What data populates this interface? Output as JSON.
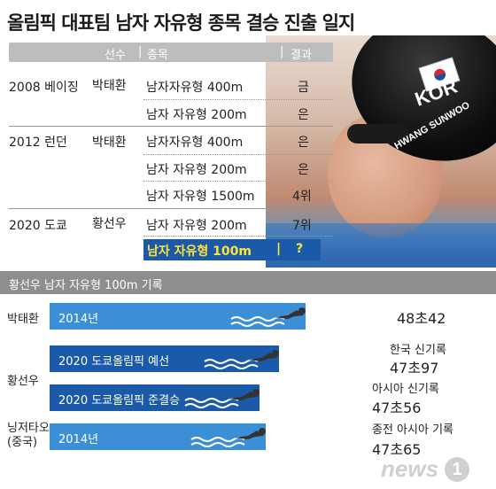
{
  "title": "올림픽 대표팀 남자 자유형 종목 결승 진출 일지",
  "photo": {
    "cap_country": "KOR",
    "cap_name": "HWANG SUNWOO"
  },
  "table": {
    "headers": {
      "athlete": "선수",
      "event": "종목",
      "result": "결과"
    },
    "rows": [
      {
        "games": "2008 베이징",
        "athlete": "박태환",
        "event": "남자자유형 400m",
        "result": "금"
      },
      {
        "games": "",
        "athlete": "",
        "event": "남자 자유형 200m",
        "result": "은"
      },
      {
        "games": "2012 런던",
        "athlete": "박태환",
        "event": "남자자유형 400m",
        "result": "은"
      },
      {
        "games": "",
        "athlete": "",
        "event": "남자 자유형 200m",
        "result": "은"
      },
      {
        "games": "",
        "athlete": "",
        "event": "남자 자유형 1500m",
        "result": "4위"
      },
      {
        "games": "2020 도쿄",
        "athlete": "황선우",
        "event": "남자 자유형 200m",
        "result": "7위"
      }
    ],
    "highlight": {
      "event": "남자 자유형 100m",
      "divider": "|",
      "result": "?"
    }
  },
  "records": {
    "header": "황선우 남자 자유형 100m 기록",
    "entries": [
      {
        "person": "박태환",
        "label": "2014년",
        "note": "",
        "time": "48초42",
        "bar_color": "#3a8fd6",
        "fill": 0.78
      },
      {
        "person": "황선우",
        "label": "2020 도쿄올림픽 예선",
        "note": "한국 신기록",
        "time": "47초97",
        "bar_color": "#1a5aa8",
        "fill": 0.7
      },
      {
        "person": "",
        "label": "2020 도쿄올림픽 준결승",
        "note": "아시아 신기록",
        "time": "47초56",
        "bar_color": "#1a5aa8",
        "fill": 0.64
      },
      {
        "person": "닝저타오\n(중국)",
        "label": "2014년",
        "note": "종전 아시아 기록",
        "time": "47초65",
        "bar_color": "#3a8fd6",
        "fill": 0.66
      }
    ]
  },
  "watermark": {
    "text": "news",
    "mark": "1"
  },
  "icons": {
    "swimmer": "swimmer-icon",
    "wave": "wave-icon"
  }
}
